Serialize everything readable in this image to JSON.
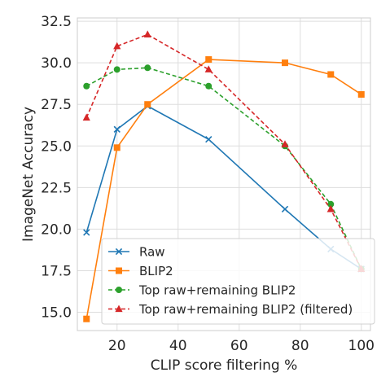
{
  "chart_data": {
    "type": "line",
    "xlabel": "CLIP score filtering %",
    "ylabel": "ImageNet Accuracy",
    "xlim": [
      7,
      103
    ],
    "ylim": [
      13.9,
      32.7
    ],
    "x_ticks": [
      20,
      40,
      60,
      80,
      100
    ],
    "x_tick_labels": [
      "20",
      "40",
      "60",
      "80",
      "100"
    ],
    "y_ticks": [
      15.0,
      17.5,
      20.0,
      22.5,
      25.0,
      27.5,
      30.0,
      32.5
    ],
    "y_tick_labels": [
      "15.0",
      "17.5",
      "20.0",
      "22.5",
      "25.0",
      "27.5",
      "30.0",
      "32.5"
    ],
    "grid": true,
    "legend_position": "lower-right",
    "series": [
      {
        "name": "Raw",
        "color": "#1f77b4",
        "linestyle": "solid",
        "marker": "x",
        "x": [
          10,
          20,
          30,
          50,
          75,
          90,
          100
        ],
        "y": [
          19.8,
          26.0,
          27.4,
          25.4,
          21.2,
          18.8,
          17.6
        ]
      },
      {
        "name": "BLIP2",
        "color": "#ff7f0e",
        "linestyle": "solid",
        "marker": "square",
        "x": [
          10,
          20,
          30,
          50,
          75,
          90,
          100
        ],
        "y": [
          14.6,
          24.9,
          27.5,
          30.2,
          30.0,
          29.3,
          28.1
        ]
      },
      {
        "name": "Top raw+remaining BLIP2",
        "color": "#2ca02c",
        "linestyle": "dashed",
        "marker": "circle",
        "x": [
          10,
          20,
          30,
          50,
          75,
          90,
          100
        ],
        "y": [
          28.6,
          29.6,
          29.7,
          28.6,
          25.0,
          21.5,
          17.6
        ]
      },
      {
        "name": "Top raw+remaining BLIP2 (filtered)",
        "color": "#d62728",
        "linestyle": "dashed",
        "marker": "triangle",
        "x": [
          10,
          20,
          30,
          50,
          75,
          90,
          100
        ],
        "y": [
          26.7,
          31.0,
          31.7,
          29.6,
          25.1,
          21.2,
          17.6
        ]
      }
    ]
  }
}
